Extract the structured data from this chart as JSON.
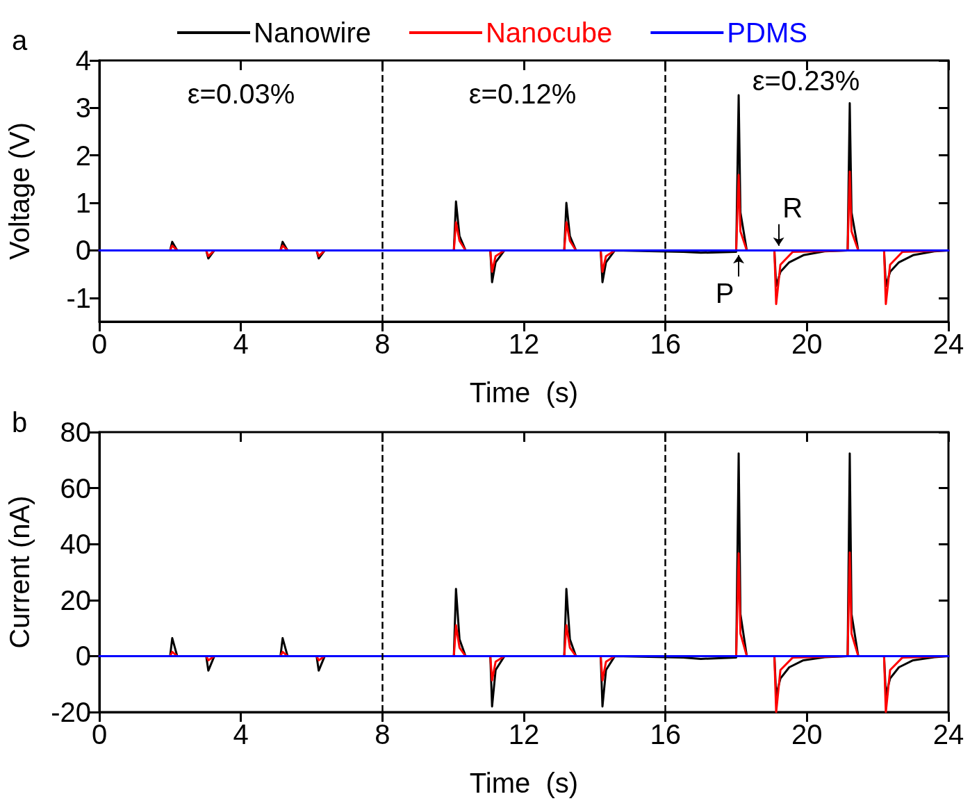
{
  "chart_data": [
    {
      "type": "line",
      "xlabel": "Time  (s)",
      "ylabel": "Voltage (V)",
      "legend": "top",
      "grid": false,
      "marker": "none",
      "xlim": [
        0,
        24
      ],
      "xticks": [
        0,
        4,
        8,
        12,
        16,
        20,
        24
      ],
      "ylim": [
        -1.5,
        4
      ],
      "yticks": [
        -1,
        0,
        1,
        2,
        3,
        4
      ],
      "annotations": [
        "a",
        "ε=0.03%",
        "ε=0.12%",
        "ε=0.23%",
        {
          "text": "P",
          "x": 18.07,
          "y": 0
        },
        {
          "text": "R",
          "x": 19.2,
          "y": 0
        }
      ],
      "ref_lines": [
        {
          "axis": "x",
          "value": 8,
          "color": "#000000",
          "line_style": "dashed"
        },
        {
          "axis": "x",
          "value": 16,
          "color": "#000000",
          "line_style": "dashed"
        }
      ],
      "series": [
        {
          "name": "Nanowire",
          "color": "#000000",
          "x": [
            0,
            2.0,
            2.06,
            2.2,
            3.02,
            3.08,
            3.25,
            5.12,
            5.18,
            5.32,
            6.14,
            6.2,
            6.37,
            10.02,
            10.08,
            10.18,
            10.35,
            11.05,
            11.1,
            11.2,
            11.45,
            13.14,
            13.2,
            13.3,
            13.47,
            14.17,
            14.22,
            14.32,
            14.57,
            16.5,
            17.0,
            18.0,
            18.07,
            18.12,
            18.3,
            19.08,
            19.13,
            19.25,
            19.5,
            19.9,
            20.5,
            21.15,
            21.21,
            21.26,
            21.45,
            22.18,
            22.23,
            22.35,
            22.6,
            23.0,
            23.6,
            24
          ],
          "values": [
            0,
            0,
            0.18,
            0,
            0,
            -0.17,
            0,
            0,
            0.18,
            0,
            0,
            -0.17,
            0,
            0,
            1.03,
            0.3,
            0,
            0,
            -0.67,
            -0.25,
            0,
            0,
            1.0,
            0.3,
            0,
            0,
            -0.67,
            -0.25,
            0,
            -0.03,
            -0.05,
            -0.03,
            3.27,
            0.8,
            0,
            0,
            -0.75,
            -0.45,
            -0.25,
            -0.1,
            -0.02,
            0,
            3.1,
            0.8,
            0,
            0,
            -0.75,
            -0.45,
            -0.25,
            -0.1,
            -0.02,
            0
          ]
        },
        {
          "name": "Nanocube",
          "color": "#ff0000",
          "x": [
            0,
            2.0,
            2.06,
            2.2,
            3.02,
            3.08,
            3.25,
            5.12,
            5.18,
            5.32,
            6.14,
            6.2,
            6.37,
            10.02,
            10.08,
            10.18,
            10.35,
            11.05,
            11.1,
            11.2,
            11.45,
            13.14,
            13.2,
            13.3,
            13.47,
            14.17,
            14.22,
            14.32,
            14.57,
            18.0,
            18.07,
            18.12,
            18.3,
            19.08,
            19.13,
            19.25,
            19.6,
            21.15,
            21.21,
            21.26,
            21.45,
            22.18,
            22.23,
            22.35,
            22.7,
            24
          ],
          "values": [
            0,
            0,
            0.1,
            0,
            0,
            -0.12,
            0,
            0,
            0.1,
            0,
            0,
            -0.12,
            0,
            0,
            0.59,
            0.2,
            0,
            0,
            -0.45,
            -0.12,
            0,
            0,
            0.59,
            0.2,
            0,
            0,
            -0.45,
            -0.12,
            0,
            0,
            1.59,
            0.4,
            0,
            0,
            -1.13,
            -0.3,
            -0.03,
            0,
            1.66,
            0.4,
            0,
            0,
            -1.13,
            -0.3,
            -0.03,
            0
          ]
        },
        {
          "name": "PDMS",
          "color": "#0000ff",
          "x": [
            0,
            24
          ],
          "values": [
            0,
            0
          ]
        }
      ]
    },
    {
      "type": "line",
      "xlabel": "Time  (s)",
      "ylabel": "Current (nA)",
      "grid": false,
      "marker": "none",
      "xlim": [
        0,
        24
      ],
      "xticks": [
        0,
        4,
        8,
        12,
        16,
        20,
        24
      ],
      "ylim": [
        -20,
        80
      ],
      "yticks": [
        -20,
        0,
        20,
        40,
        60,
        80
      ],
      "annotations": [
        "b"
      ],
      "ref_lines": [
        {
          "axis": "x",
          "value": 8,
          "color": "#000000",
          "line_style": "dashed"
        },
        {
          "axis": "x",
          "value": 16,
          "color": "#000000",
          "line_style": "dashed"
        }
      ],
      "series": [
        {
          "color": "#000000",
          "x": [
            0,
            2.0,
            2.06,
            2.2,
            3.02,
            3.08,
            3.25,
            5.12,
            5.18,
            5.32,
            6.14,
            6.2,
            6.37,
            10.02,
            10.08,
            10.18,
            10.35,
            11.05,
            11.1,
            11.2,
            11.45,
            13.14,
            13.2,
            13.3,
            13.47,
            14.17,
            14.22,
            14.32,
            14.57,
            16.5,
            17.0,
            18.0,
            18.07,
            18.12,
            18.3,
            19.08,
            19.13,
            19.25,
            19.5,
            19.9,
            20.5,
            21.15,
            21.21,
            21.26,
            21.45,
            22.18,
            22.23,
            22.35,
            22.6,
            23.0,
            23.6,
            24
          ],
          "values": [
            0,
            0,
            6.4,
            0,
            0,
            -5.2,
            0,
            0,
            6.4,
            0,
            0,
            -5.2,
            0,
            0,
            24,
            6,
            0,
            0,
            -18,
            -5,
            0,
            0,
            24,
            6,
            0,
            0,
            -18,
            -5,
            0,
            -0.5,
            -1,
            -0.5,
            72.4,
            15,
            0,
            0,
            -14,
            -8,
            -4,
            -1.5,
            -0.4,
            0,
            72.4,
            15,
            0,
            0,
            -14,
            -8,
            -4,
            -1.5,
            -0.4,
            0
          ]
        },
        {
          "color": "#ff0000",
          "x": [
            0,
            2.0,
            2.06,
            2.2,
            3.02,
            3.08,
            3.25,
            5.12,
            5.18,
            5.32,
            6.14,
            6.2,
            6.37,
            10.02,
            10.08,
            10.18,
            10.35,
            11.05,
            11.1,
            11.2,
            11.45,
            13.14,
            13.2,
            13.3,
            13.47,
            14.17,
            14.22,
            14.32,
            14.57,
            18.0,
            18.07,
            18.12,
            18.3,
            19.08,
            19.13,
            19.25,
            19.6,
            21.15,
            21.21,
            21.26,
            21.45,
            22.18,
            22.23,
            22.35,
            22.7,
            24
          ],
          "values": [
            0,
            0,
            1.5,
            0,
            0,
            -1.5,
            0,
            0,
            1.5,
            0,
            0,
            -1.5,
            0,
            0,
            11,
            3,
            0,
            0,
            -8.7,
            -2,
            0,
            0,
            11,
            3,
            0,
            0,
            -8.7,
            -2,
            0,
            0,
            36.7,
            8,
            0,
            0,
            -20,
            -5,
            -0.5,
            0,
            37,
            8,
            0,
            0,
            -20,
            -5,
            -0.5,
            0
          ]
        },
        {
          "color": "#0000ff",
          "x": [
            0,
            24
          ],
          "values": [
            0,
            0
          ]
        }
      ]
    }
  ]
}
